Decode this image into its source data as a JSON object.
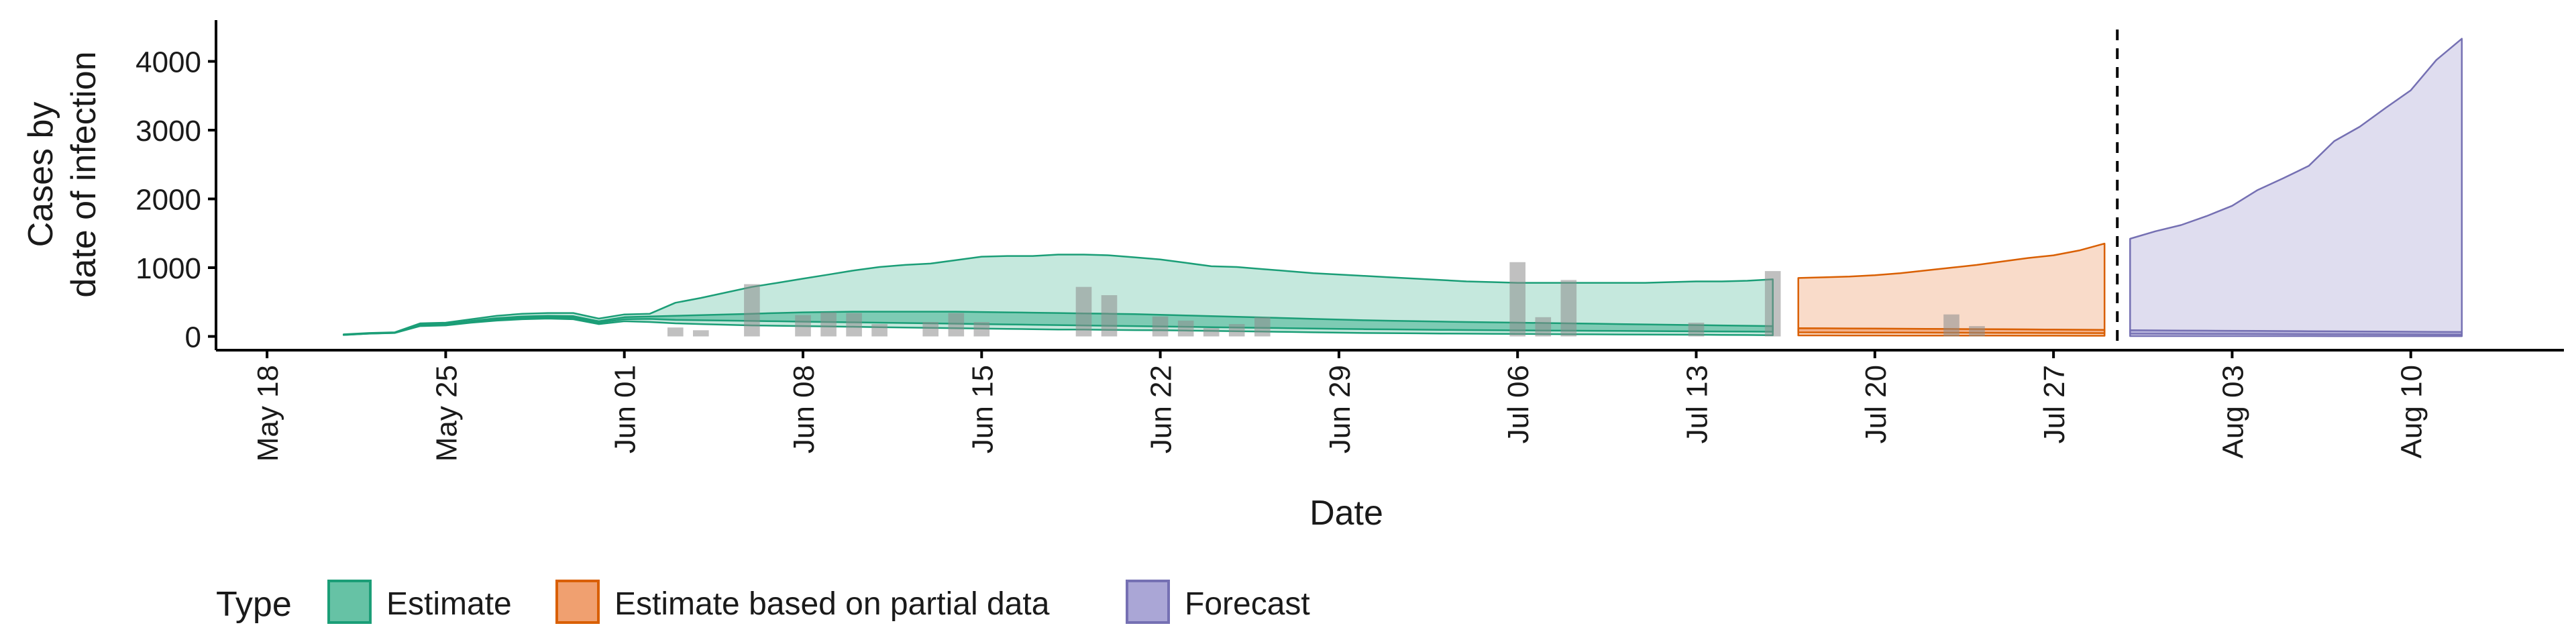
{
  "chart_data": {
    "type": "area",
    "xlabel": "Date",
    "ylabel": [
      "Cases by",
      "date of infection"
    ],
    "x_range": [
      "2020-05-16",
      "2020-08-16"
    ],
    "ylim": [
      -200,
      4600
    ],
    "x_ticks": [
      {
        "date": "2020-05-18",
        "label": "May 18"
      },
      {
        "date": "2020-05-25",
        "label": "May 25"
      },
      {
        "date": "2020-06-01",
        "label": "Jun 01"
      },
      {
        "date": "2020-06-08",
        "label": "Jun 08"
      },
      {
        "date": "2020-06-15",
        "label": "Jun 15"
      },
      {
        "date": "2020-06-22",
        "label": "Jun 22"
      },
      {
        "date": "2020-06-29",
        "label": "Jun 29"
      },
      {
        "date": "2020-07-06",
        "label": "Jul 06"
      },
      {
        "date": "2020-07-13",
        "label": "Jul 13"
      },
      {
        "date": "2020-07-20",
        "label": "Jul 20"
      },
      {
        "date": "2020-07-27",
        "label": "Jul 27"
      },
      {
        "date": "2020-08-03",
        "label": "Aug 03"
      },
      {
        "date": "2020-08-10",
        "label": "Aug 10"
      }
    ],
    "y_ticks": [
      0,
      1000,
      2000,
      3000,
      4000
    ],
    "forecast_date": "2020-07-29",
    "legend": {
      "title": "Type",
      "position": "bottom",
      "entries": [
        {
          "label": "Estimate",
          "fill": "#66c2a5",
          "stroke": "#1b9e77"
        },
        {
          "label": "Estimate based on partial data",
          "fill": "#f0a070",
          "stroke": "#d95f02"
        },
        {
          "label": "Forecast",
          "fill": "#aaa6d6",
          "stroke": "#7570b3"
        }
      ]
    },
    "colors": {
      "estimate_fill": "#66c2a5",
      "estimate_line": "#1b9e77",
      "partial_fill": "#f0a070",
      "partial_line": "#d95f02",
      "forecast_fill": "#aaa6d6",
      "forecast_line": "#7570b3",
      "bar": "#8c8c8c",
      "axis": "#000000"
    },
    "reported_cases": [
      {
        "date": "2020-06-03",
        "value": 130
      },
      {
        "date": "2020-06-04",
        "value": 90
      },
      {
        "date": "2020-06-06",
        "value": 760
      },
      {
        "date": "2020-06-08",
        "value": 310
      },
      {
        "date": "2020-06-09",
        "value": 350
      },
      {
        "date": "2020-06-10",
        "value": 340
      },
      {
        "date": "2020-06-11",
        "value": 180
      },
      {
        "date": "2020-06-13",
        "value": 210
      },
      {
        "date": "2020-06-14",
        "value": 340
      },
      {
        "date": "2020-06-15",
        "value": 210
      },
      {
        "date": "2020-06-19",
        "value": 720
      },
      {
        "date": "2020-06-20",
        "value": 600
      },
      {
        "date": "2020-06-22",
        "value": 290
      },
      {
        "date": "2020-06-23",
        "value": 230
      },
      {
        "date": "2020-06-24",
        "value": 120
      },
      {
        "date": "2020-06-25",
        "value": 180
      },
      {
        "date": "2020-06-26",
        "value": 280
      },
      {
        "date": "2020-07-06",
        "value": 1080
      },
      {
        "date": "2020-07-07",
        "value": 280
      },
      {
        "date": "2020-07-08",
        "value": 820
      },
      {
        "date": "2020-07-13",
        "value": 200
      },
      {
        "date": "2020-07-16",
        "value": 950
      },
      {
        "date": "2020-07-23",
        "value": 320
      },
      {
        "date": "2020-07-24",
        "value": 150
      }
    ],
    "series": [
      {
        "name": "Estimate",
        "dates": [
          "2020-05-21",
          "2020-05-22",
          "2020-05-23",
          "2020-05-24",
          "2020-05-25",
          "2020-05-26",
          "2020-05-27",
          "2020-05-28",
          "2020-05-29",
          "2020-05-30",
          "2020-05-31",
          "2020-06-01",
          "2020-06-02",
          "2020-06-03",
          "2020-06-04",
          "2020-06-05",
          "2020-06-06",
          "2020-06-07",
          "2020-06-08",
          "2020-06-09",
          "2020-06-10",
          "2020-06-11",
          "2020-06-12",
          "2020-06-13",
          "2020-06-14",
          "2020-06-15",
          "2020-06-16",
          "2020-06-17",
          "2020-06-18",
          "2020-06-19",
          "2020-06-20",
          "2020-06-21",
          "2020-06-22",
          "2020-06-23",
          "2020-06-24",
          "2020-06-25",
          "2020-06-26",
          "2020-06-27",
          "2020-06-28",
          "2020-06-29",
          "2020-06-30",
          "2020-07-01",
          "2020-07-02",
          "2020-07-03",
          "2020-07-04",
          "2020-07-05",
          "2020-07-06",
          "2020-07-07",
          "2020-07-08",
          "2020-07-09",
          "2020-07-10",
          "2020-07-11",
          "2020-07-12",
          "2020-07-13",
          "2020-07-14",
          "2020-07-15",
          "2020-07-16"
        ],
        "upper90": [
          30,
          50,
          60,
          190,
          200,
          250,
          300,
          330,
          340,
          340,
          260,
          320,
          330,
          490,
          560,
          640,
          720,
          780,
          840,
          900,
          960,
          1010,
          1040,
          1060,
          1110,
          1160,
          1170,
          1170,
          1190,
          1190,
          1180,
          1150,
          1120,
          1070,
          1020,
          1010,
          980,
          950,
          920,
          900,
          880,
          860,
          840,
          820,
          800,
          790,
          780,
          780,
          780,
          780,
          780,
          780,
          790,
          800,
          800,
          810,
          830
        ],
        "lower90": [
          20,
          40,
          50,
          150,
          160,
          200,
          230,
          250,
          260,
          250,
          180,
          220,
          210,
          190,
          180,
          170,
          160,
          155,
          150,
          145,
          140,
          135,
          130,
          125,
          120,
          115,
          110,
          105,
          100,
          100,
          95,
          92,
          90,
          85,
          80,
          75,
          70,
          65,
          60,
          55,
          50,
          48,
          45,
          42,
          40,
          38,
          36,
          34,
          32,
          30,
          28,
          26,
          25,
          24,
          22,
          20,
          18
        ],
        "upper50": [
          25,
          45,
          55,
          170,
          180,
          225,
          265,
          290,
          300,
          295,
          220,
          280,
          290,
          300,
          310,
          320,
          330,
          340,
          350,
          355,
          360,
          360,
          360,
          360,
          360,
          355,
          350,
          345,
          340,
          335,
          330,
          325,
          315,
          305,
          295,
          285,
          275,
          265,
          255,
          245,
          235,
          228,
          222,
          216,
          210,
          205,
          200,
          195,
          190,
          185,
          180,
          175,
          170,
          165,
          160,
          155,
          150
        ],
        "lower50": [
          22,
          42,
          52,
          160,
          170,
          212,
          248,
          270,
          280,
          272,
          200,
          250,
          255,
          240,
          235,
          230,
          225,
          220,
          215,
          210,
          205,
          200,
          195,
          190,
          185,
          180,
          175,
          170,
          165,
          160,
          155,
          150,
          145,
          140,
          135,
          130,
          125,
          120,
          115,
          110,
          105,
          102,
          99,
          96,
          93,
          90,
          88,
          86,
          84,
          82,
          80,
          78,
          76,
          74,
          72,
          70,
          68
        ]
      },
      {
        "name": "Estimate based on partial data",
        "dates": [
          "2020-07-17",
          "2020-07-18",
          "2020-07-19",
          "2020-07-20",
          "2020-07-21",
          "2020-07-22",
          "2020-07-23",
          "2020-07-24",
          "2020-07-25",
          "2020-07-26",
          "2020-07-27",
          "2020-07-28",
          "2020-07-29"
        ],
        "upper90": [
          850,
          860,
          870,
          890,
          920,
          960,
          1000,
          1040,
          1090,
          1140,
          1180,
          1250,
          1350
        ],
        "lower90": [
          15,
          15,
          14,
          14,
          13,
          13,
          12,
          12,
          12,
          11,
          11,
          10,
          10
        ],
        "upper50": [
          120,
          118,
          116,
          114,
          112,
          110,
          108,
          106,
          104,
          102,
          100,
          98,
          96
        ],
        "lower50": [
          60,
          59,
          58,
          57,
          56,
          55,
          54,
          53,
          52,
          51,
          50,
          49,
          48
        ]
      },
      {
        "name": "Forecast",
        "dates": [
          "2020-07-30",
          "2020-07-31",
          "2020-08-01",
          "2020-08-02",
          "2020-08-03",
          "2020-08-04",
          "2020-08-05",
          "2020-08-06",
          "2020-08-07",
          "2020-08-08",
          "2020-08-09",
          "2020-08-10",
          "2020-08-11",
          "2020-08-12"
        ],
        "upper90": [
          1420,
          1530,
          1620,
          1750,
          1900,
          2130,
          2300,
          2480,
          2840,
          3050,
          3320,
          3580,
          4020,
          4330
        ],
        "lower90": [
          5,
          5,
          5,
          5,
          5,
          5,
          5,
          5,
          4,
          4,
          4,
          4,
          4,
          4
        ],
        "upper50": [
          90,
          88,
          86,
          84,
          82,
          80,
          78,
          76,
          74,
          72,
          70,
          68,
          66,
          64
        ],
        "lower50": [
          40,
          39,
          38,
          37,
          36,
          35,
          34,
          33,
          32,
          31,
          30,
          29,
          28,
          27
        ]
      }
    ]
  }
}
